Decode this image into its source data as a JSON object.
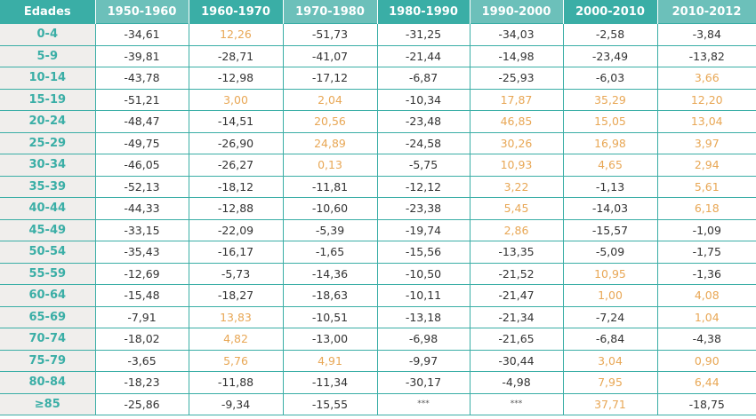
{
  "table": {
    "headers": [
      "Edades",
      "1950-1960",
      "1960-1970",
      "1970-1980",
      "1980-1990",
      "1990-2000",
      "2000-2010",
      "2010-2012"
    ],
    "rows": [
      {
        "age": "0-4",
        "values": [
          "-34,61",
          "12,26",
          "-51,73",
          "-31,25",
          "-34,03",
          "-2,58",
          "-3,84"
        ]
      },
      {
        "age": "5-9",
        "values": [
          "-39,81",
          "-28,71",
          "-41,07",
          "-21,44",
          "-14,98",
          "-23,49",
          "-13,82"
        ]
      },
      {
        "age": "10-14",
        "values": [
          "-43,78",
          "-12,98",
          "-17,12",
          "-6,87",
          "-25,93",
          "-6,03",
          "3,66"
        ]
      },
      {
        "age": "15-19",
        "values": [
          "-51,21",
          "3,00",
          "2,04",
          "-10,34",
          "17,87",
          "35,29",
          "12,20"
        ]
      },
      {
        "age": "20-24",
        "values": [
          "-48,47",
          "-14,51",
          "20,56",
          "-23,48",
          "46,85",
          "15,05",
          "13,04"
        ]
      },
      {
        "age": "25-29",
        "values": [
          "-49,75",
          "-26,90",
          "24,89",
          "-24,58",
          "30,26",
          "16,98",
          "3,97"
        ]
      },
      {
        "age": "30-34",
        "values": [
          "-46,05",
          "-26,27",
          "0,13",
          "-5,75",
          "10,93",
          "4,65",
          "2,94"
        ]
      },
      {
        "age": "35-39",
        "values": [
          "-52,13",
          "-18,12",
          "-11,81",
          "-12,12",
          "3,22",
          "-1,13",
          "5,61"
        ]
      },
      {
        "age": "40-44",
        "values": [
          "-44,33",
          "-12,88",
          "-10,60",
          "-23,38",
          "5,45",
          "-14,03",
          "6,18"
        ]
      },
      {
        "age": "45-49",
        "values": [
          "-33,15",
          "-22,09",
          "-5,39",
          "-19,74",
          "2,86",
          "-15,57",
          "-1,09"
        ]
      },
      {
        "age": "50-54",
        "values": [
          "-35,43",
          "-16,17",
          "-1,65",
          "-15,56",
          "-13,35",
          "-5,09",
          "-1,75"
        ]
      },
      {
        "age": "55-59",
        "values": [
          "-12,69",
          "-5,73",
          "-14,36",
          "-10,50",
          "-21,52",
          "10,95",
          "-1,36"
        ]
      },
      {
        "age": "60-64",
        "values": [
          "-15,48",
          "-18,27",
          "-18,63",
          "-10,11",
          "-21,47",
          "1,00",
          "4,08"
        ]
      },
      {
        "age": "65-69",
        "values": [
          "-7,91",
          "13,83",
          "-10,51",
          "-13,18",
          "-21,34",
          "-7,24",
          "1,04"
        ]
      },
      {
        "age": "70-74",
        "values": [
          "-18,02",
          "4,82",
          "-13,00",
          "-6,98",
          "-21,65",
          "-6,84",
          "-4,38"
        ]
      },
      {
        "age": "75-79",
        "values": [
          "-3,65",
          "5,76",
          "4,91",
          "-9,97",
          "-30,44",
          "3,04",
          "0,90"
        ]
      },
      {
        "age": "80-84",
        "values": [
          "-18,23",
          "-11,88",
          "-11,34",
          "-30,17",
          "-4,98",
          "7,95",
          "6,44"
        ]
      },
      {
        "age": "≥85",
        "values": [
          "-25,86",
          "-9,34",
          "-15,55",
          "***",
          "***",
          "37,71",
          "-18,75"
        ]
      }
    ]
  },
  "colors": {
    "header_dark": "#3aaea6",
    "header_light": "#6cc0ba",
    "positive_value": "#e8a755",
    "negative_value": "#333333",
    "age_label": "#3aaea6",
    "age_background": "#f0eeec"
  }
}
